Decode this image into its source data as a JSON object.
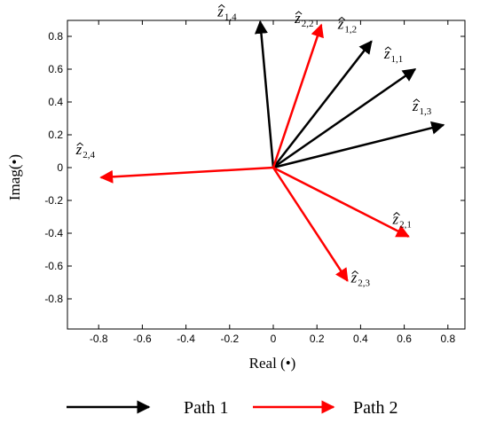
{
  "chart_data": {
    "type": "vector",
    "xlabel": "Real (•)",
    "ylabel": "Imag(•)",
    "xlim": [
      -0.95,
      0.95
    ],
    "ylim": [
      -0.95,
      0.95
    ],
    "xticks": [
      "-0.8",
      "-0.6",
      "-0.4",
      "-0.2",
      "0",
      "0.2",
      "0.4",
      "0.6",
      "0.8"
    ],
    "yticks": [
      "0.8",
      "0.6",
      "0.4",
      "0.2",
      "0",
      "-0.2",
      "-0.4",
      "-0.6",
      "-0.8"
    ],
    "grid": false,
    "legend_position": "bottom",
    "series": [
      {
        "name": "Path 1",
        "color": "#000000",
        "vectors": [
          {
            "label_base": "z",
            "label_sub": "1,1",
            "x": 0.65,
            "y": 0.6
          },
          {
            "label_base": "z",
            "label_sub": "1,2",
            "x": 0.45,
            "y": 0.77
          },
          {
            "label_base": "z",
            "label_sub": "1,3",
            "x": 0.78,
            "y": 0.26
          },
          {
            "label_base": "z",
            "label_sub": "1,4",
            "x": -0.06,
            "y": 0.89
          }
        ]
      },
      {
        "name": "Path 2",
        "color": "#ff0000",
        "vectors": [
          {
            "label_base": "z",
            "label_sub": "2,1",
            "x": 0.62,
            "y": -0.42
          },
          {
            "label_base": "z",
            "label_sub": "2,2",
            "x": 0.22,
            "y": 0.87
          },
          {
            "label_base": "z",
            "label_sub": "2,3",
            "x": 0.34,
            "y": -0.69
          },
          {
            "label_base": "z",
            "label_sub": "2,4",
            "x": -0.79,
            "y": -0.06
          }
        ]
      }
    ]
  }
}
